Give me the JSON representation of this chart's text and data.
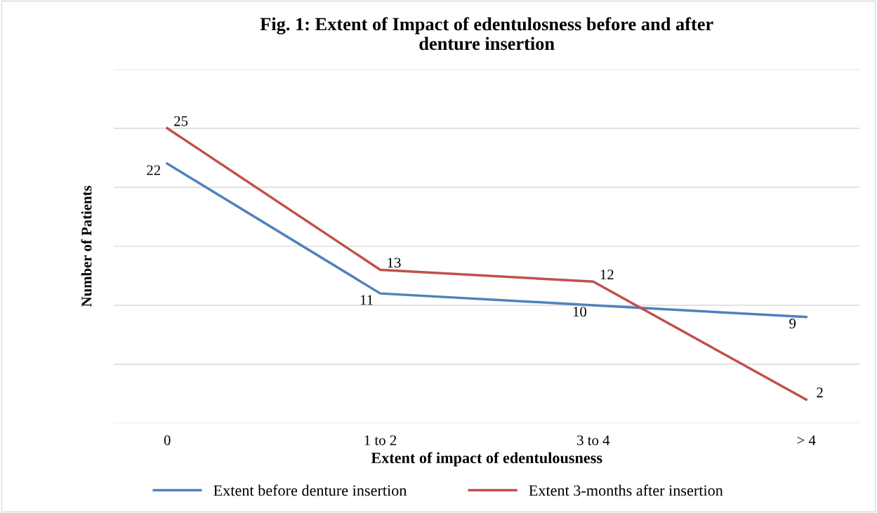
{
  "chart_data": {
    "type": "line",
    "title": "Fig. 1: Extent of Impact of edentulosness before and after\ndenture insertion",
    "xlabel": "Extent of impact of edentulousness",
    "ylabel": "Number of Patients",
    "categories": [
      "0",
      "1 to 2",
      "3 to 4",
      "> 4"
    ],
    "series": [
      {
        "name": "Extent before denture insertion",
        "color": "#4f81bd",
        "values": [
          22,
          11,
          10,
          9
        ]
      },
      {
        "name": "Extent 3-months after insertion",
        "color": "#c0504d",
        "values": [
          25,
          13,
          12,
          2
        ]
      }
    ],
    "ylim": [
      0,
      30
    ],
    "yticks": [
      {
        "value": 0,
        "label": null
      },
      {
        "value": 5,
        "label": null
      },
      {
        "value": 10,
        "label": null
      },
      {
        "value": 15,
        "label": null
      },
      {
        "value": 20,
        "label": null
      },
      {
        "value": 25,
        "label": null
      },
      {
        "value": 30,
        "label": null
      }
    ],
    "tick_labels": "x",
    "grid": "y",
    "legend": "bottom",
    "data_labels": true,
    "marker": "none",
    "line_style": "solid"
  }
}
